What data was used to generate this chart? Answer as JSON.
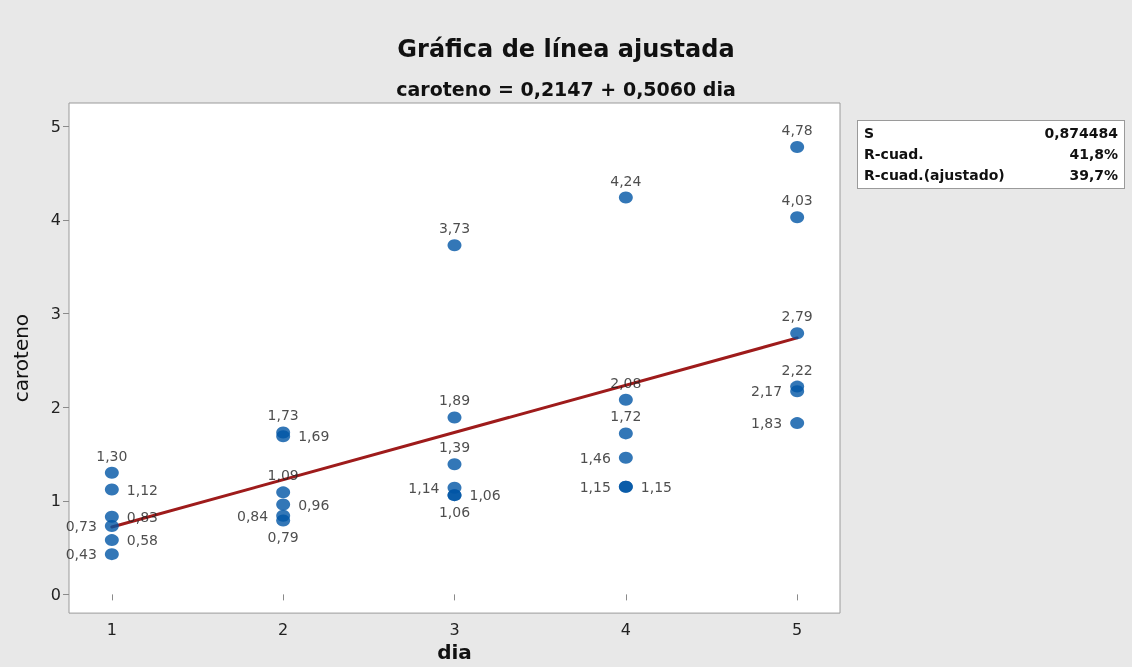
{
  "chart_data": {
    "type": "scatter",
    "title": "Gráfica de línea ajustada",
    "subtitle": "caroteno = 0,2147 + 0,5060 dia",
    "xlabel": "dia",
    "ylabel": "caroteno",
    "annotations": [
      "S",
      "0,874484",
      "R-cuad.",
      "41,8%",
      "R-cuad.(ajustado)",
      "39,7%"
    ],
    "xlim": [
      0.75,
      5.25
    ],
    "xticks": [
      1,
      2,
      3,
      4,
      5
    ],
    "ylim": [
      -0.2,
      5.25
    ],
    "yticks": [
      0,
      1,
      2,
      3,
      4,
      5
    ],
    "grid": false,
    "marker": "circle",
    "series": [
      {
        "color": "#0055a5",
        "x": [
          1,
          1,
          1,
          1,
          1,
          1,
          2,
          2,
          2,
          2,
          2,
          2,
          3,
          3,
          3,
          3,
          3,
          3,
          4,
          4,
          4,
          4,
          4,
          4,
          5,
          5,
          5,
          5,
          5,
          5
        ],
        "values": [
          1.3,
          1.12,
          0.83,
          0.73,
          0.58,
          0.43,
          1.73,
          1.69,
          1.09,
          0.96,
          0.84,
          0.79,
          3.73,
          1.89,
          1.39,
          1.14,
          1.06,
          1.06,
          4.24,
          2.08,
          1.72,
          1.46,
          1.15,
          1.15,
          4.78,
          4.03,
          2.79,
          2.22,
          2.17,
          1.83
        ],
        "value_labels": [
          "1,30",
          "1,12",
          "0,83",
          "0,73",
          "0,58",
          "0,43",
          "1,73",
          "1,69",
          "1,09",
          "0,96",
          "0,84",
          "0,79",
          "3,73",
          "1,89",
          "1,39",
          "1,14",
          "1,06",
          "1,06",
          "4,24",
          "2,08",
          "1,72",
          "1,46",
          "1,15",
          "1,15",
          "4,78",
          "4,03",
          "2,79",
          "2,22",
          "2,17",
          "1,83"
        ]
      },
      {
        "type": "line",
        "color": "#9e1b1b",
        "marker": "none",
        "line_style": "solid",
        "x": [
          1,
          5
        ],
        "values": [
          0.72,
          2.74
        ]
      }
    ]
  }
}
